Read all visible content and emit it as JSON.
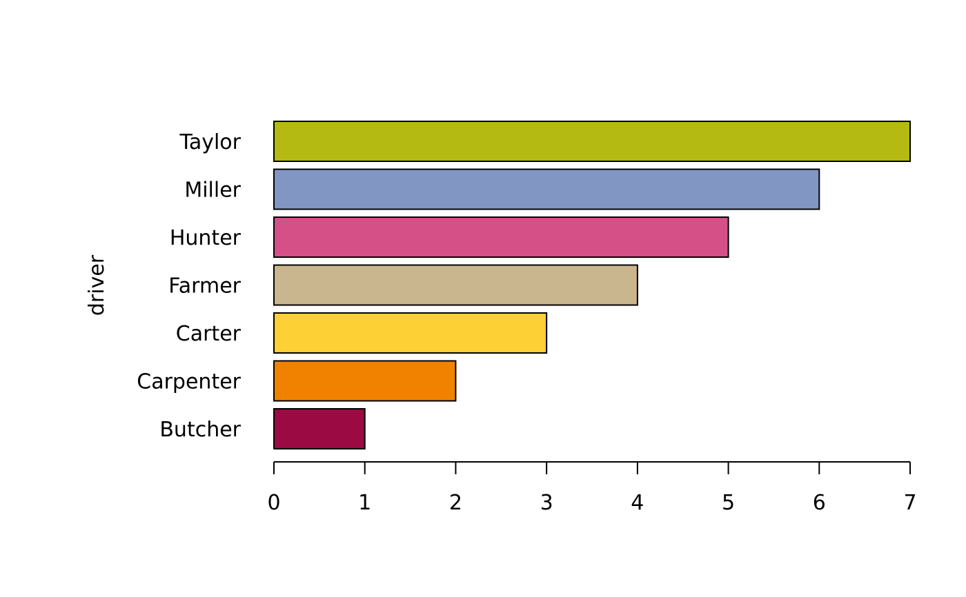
{
  "chart_data": {
    "type": "bar",
    "orientation": "horizontal",
    "categories": [
      "Butcher",
      "Carpenter",
      "Carter",
      "Farmer",
      "Hunter",
      "Miller",
      "Taylor"
    ],
    "values": [
      1,
      2,
      3,
      4,
      5,
      6,
      7
    ],
    "colors": [
      "#9B0A42",
      "#F08200",
      "#FDD035",
      "#CAB68E",
      "#D45087",
      "#8296C3",
      "#B4BA12"
    ],
    "title": "",
    "xlabel": "",
    "ylabel": "driver",
    "xlim": [
      0,
      7
    ],
    "xticks": [
      "0",
      "1",
      "2",
      "3",
      "4",
      "5",
      "6",
      "7"
    ],
    "grid": false,
    "legend": "none"
  }
}
